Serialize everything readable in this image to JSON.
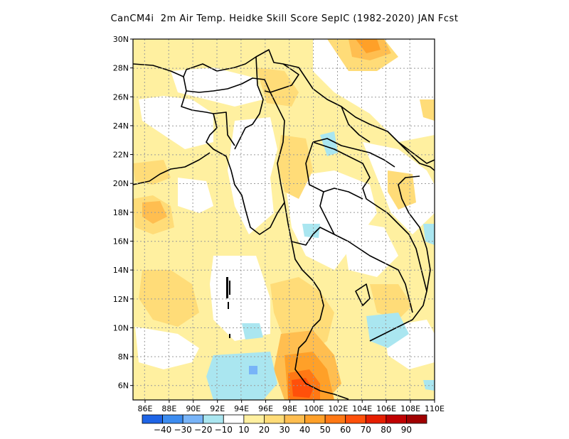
{
  "title": "CanCM4i  2m Air Temp. Heidke Skill Score SepIC (1982-2020) JAN Fcst",
  "map": {
    "lon_range": [
      85,
      110
    ],
    "lat_range": [
      5,
      30
    ],
    "x_ticks": [
      "86E",
      "88E",
      "90E",
      "92E",
      "94E",
      "96E",
      "98E",
      "100E",
      "102E",
      "104E",
      "106E",
      "108E",
      "110E"
    ],
    "y_ticks": [
      "30N",
      "28N",
      "26N",
      "24N",
      "22N",
      "20N",
      "18N",
      "16N",
      "14N",
      "12N",
      "10N",
      "8N",
      "6N"
    ],
    "grid": true
  },
  "colorbar": {
    "colors": [
      "#1e64e6",
      "#3c8cf0",
      "#78b4f8",
      "#aae6f0",
      "#ffffff",
      "#fff0a0",
      "#ffdc78",
      "#ffbe50",
      "#ffa028",
      "#ff7814",
      "#ff500a",
      "#e61e00",
      "#c00000",
      "#a00000"
    ],
    "labels": [
      "-40",
      "-30",
      "-20",
      "-10",
      "10",
      "20",
      "30",
      "40",
      "50",
      "60",
      "70",
      "80",
      "90"
    ]
  },
  "legend_colors": {
    "weak_positive": "#fff0a0",
    "moderate_positive": "#ffdc78",
    "strong_positive": "#ffa028",
    "very_strong_positive": "#ff500a",
    "weak_negative": "#aae6f0",
    "moderate_negative": "#78b4f8"
  }
}
